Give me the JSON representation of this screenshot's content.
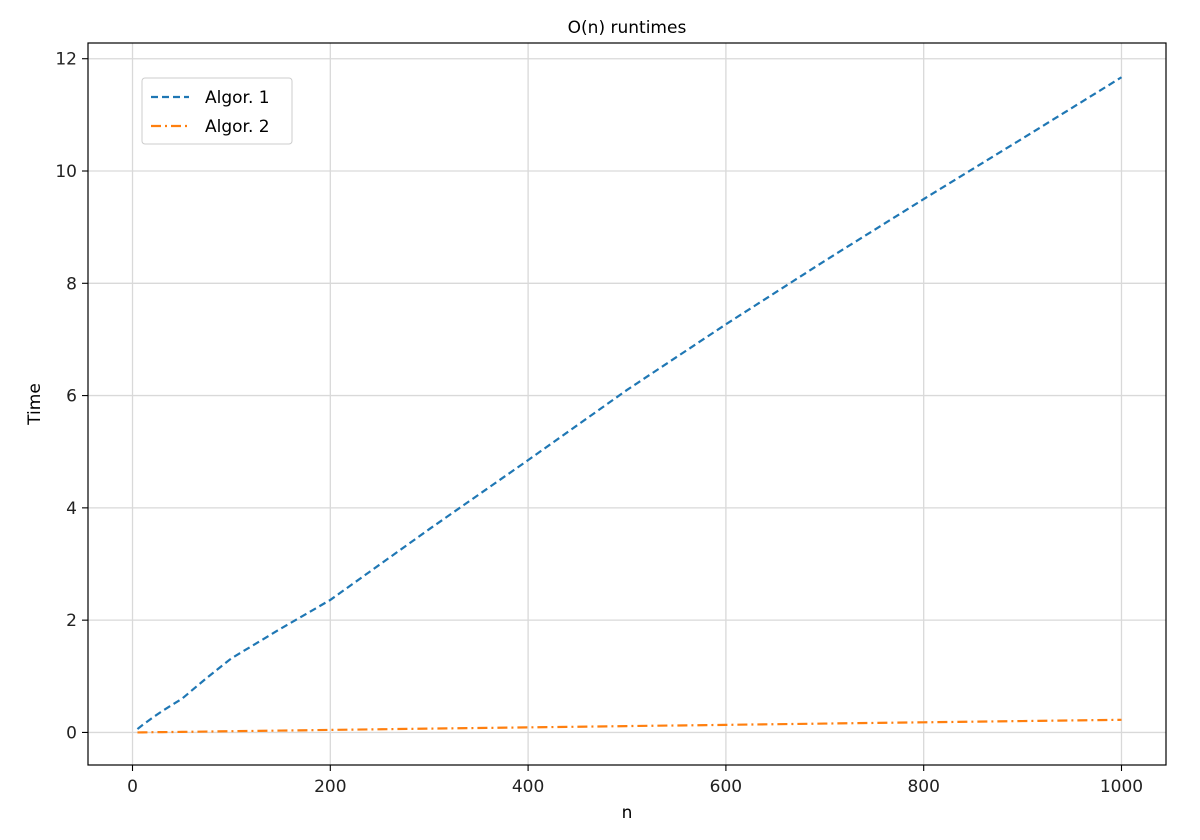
{
  "chart_data": {
    "type": "line",
    "title": "O(n) runtimes",
    "xlabel": "n",
    "ylabel": "Time",
    "xlim": [
      -45,
      1045
    ],
    "ylim": [
      -0.58,
      12.28
    ],
    "xticks": [
      0,
      200,
      400,
      600,
      800,
      1000
    ],
    "yticks": [
      0,
      2,
      4,
      6,
      8,
      10,
      12
    ],
    "grid": true,
    "legend_position": "top-left",
    "series": [
      {
        "name": "Algor. 1",
        "color": "#1f77b4",
        "style": "dashed",
        "x": [
          5,
          10,
          20,
          30,
          50,
          75,
          100,
          150,
          200,
          300,
          400,
          500,
          600,
          700,
          800,
          900,
          1000
        ],
        "y": [
          0.06,
          0.13,
          0.26,
          0.38,
          0.6,
          0.97,
          1.32,
          1.85,
          2.36,
          3.62,
          4.85,
          6.1,
          7.27,
          8.4,
          9.5,
          10.58,
          11.67
        ]
      },
      {
        "name": "Algor. 2",
        "color": "#ff7f0e",
        "style": "dashdot",
        "x": [
          5,
          10,
          20,
          30,
          50,
          75,
          100,
          150,
          200,
          300,
          400,
          500,
          600,
          700,
          800,
          900,
          1000
        ],
        "y": [
          0.0,
          0.001,
          0.004,
          0.006,
          0.01,
          0.016,
          0.022,
          0.033,
          0.045,
          0.068,
          0.09,
          0.113,
          0.135,
          0.158,
          0.18,
          0.203,
          0.225
        ]
      }
    ]
  }
}
